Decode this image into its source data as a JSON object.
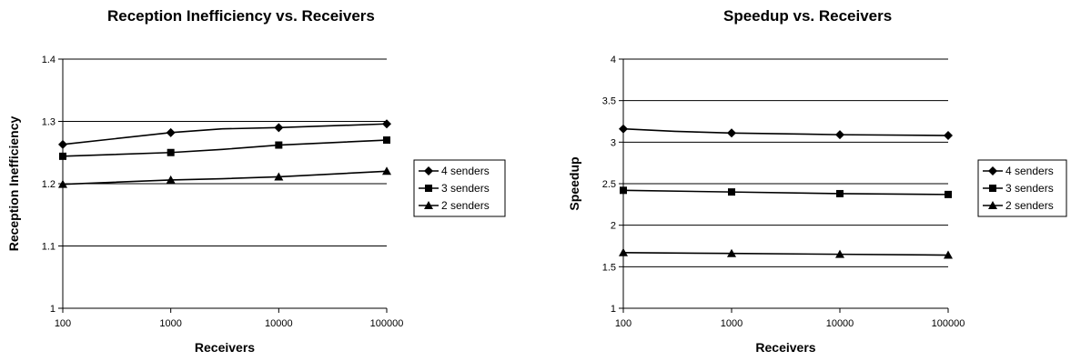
{
  "chart_data": [
    {
      "type": "line",
      "title": "Reception Inefficiency vs. Receivers",
      "xlabel": "Receivers",
      "ylabel": "Reception Inefficiency",
      "x_scale": "log",
      "x": [
        100,
        1000,
        10000,
        100000
      ],
      "x_tick_labels": [
        "100",
        "1000",
        "10000",
        "100000"
      ],
      "ylim": [
        1,
        1.4
      ],
      "y_ticks": [
        1,
        1.1,
        1.2,
        1.3,
        1.4
      ],
      "y_tick_labels": [
        "1",
        "1.1",
        "1.2",
        "1.3",
        "1.4"
      ],
      "grid": true,
      "legend": "right",
      "series": [
        {
          "name": "4 senders",
          "marker": "diamond",
          "x": [
            100,
            1000,
            3000,
            10000,
            100000
          ],
          "values": [
            1.263,
            1.282,
            1.288,
            1.29,
            1.296
          ],
          "marker_x": [
            100,
            1000,
            10000,
            100000
          ]
        },
        {
          "name": "3 senders",
          "marker": "square",
          "x": [
            100,
            1000,
            3000,
            10000,
            100000
          ],
          "values": [
            1.244,
            1.25,
            1.255,
            1.262,
            1.27
          ],
          "marker_x": [
            100,
            1000,
            10000,
            100000
          ]
        },
        {
          "name": "2 senders",
          "marker": "triangle",
          "x": [
            100,
            1000,
            3000,
            10000,
            100000
          ],
          "values": [
            1.199,
            1.206,
            1.208,
            1.211,
            1.22
          ],
          "marker_x": [
            100,
            1000,
            10000,
            100000
          ]
        }
      ]
    },
    {
      "type": "line",
      "title": "Speedup vs. Receivers",
      "xlabel": "Receivers",
      "ylabel": "Speedup",
      "x_scale": "log",
      "x": [
        100,
        1000,
        10000,
        100000
      ],
      "x_tick_labels": [
        "100",
        "1000",
        "10000",
        "100000"
      ],
      "ylim": [
        1,
        4
      ],
      "y_ticks": [
        1,
        1.5,
        2,
        2.5,
        3,
        3.5,
        4
      ],
      "y_tick_labels": [
        "1",
        "1.5",
        "2",
        "2.5",
        "3",
        "3.5",
        "4"
      ],
      "grid": true,
      "legend": "right",
      "series": [
        {
          "name": "4 senders",
          "marker": "diamond",
          "x": [
            100,
            300,
            1000,
            10000,
            100000
          ],
          "values": [
            3.16,
            3.13,
            3.11,
            3.09,
            3.08
          ],
          "marker_x": [
            100,
            1000,
            10000,
            100000
          ]
        },
        {
          "name": "3 senders",
          "marker": "square",
          "x": [
            100,
            1000,
            10000,
            100000
          ],
          "values": [
            2.42,
            2.4,
            2.38,
            2.37
          ],
          "marker_x": [
            100,
            1000,
            10000,
            100000
          ]
        },
        {
          "name": "2 senders",
          "marker": "triangle",
          "x": [
            100,
            1000,
            10000,
            100000
          ],
          "values": [
            1.67,
            1.66,
            1.65,
            1.64
          ],
          "marker_x": [
            100,
            1000,
            10000,
            100000
          ]
        }
      ]
    }
  ]
}
